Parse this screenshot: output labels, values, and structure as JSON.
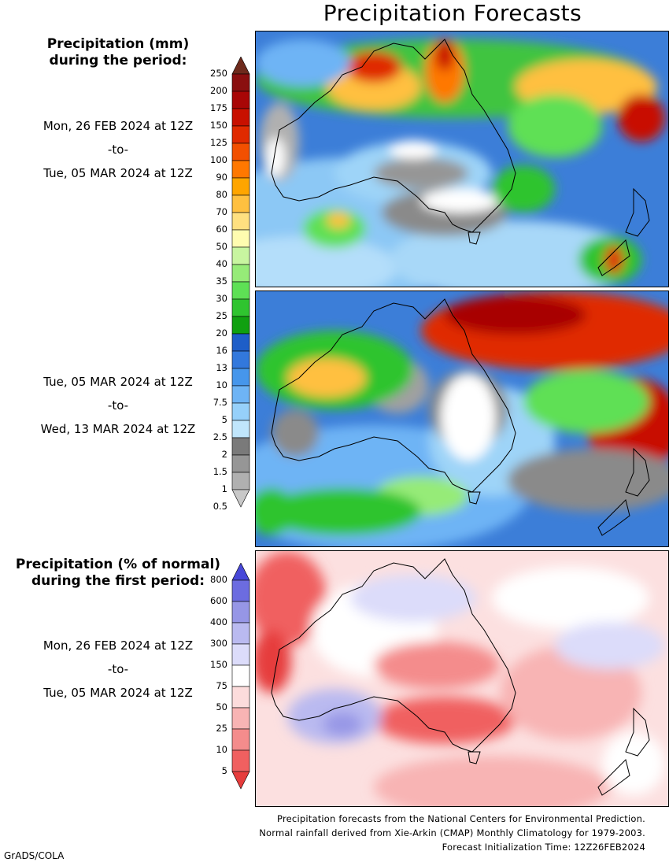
{
  "title": "Precipitation Forecasts",
  "section1": {
    "heading_line1": "Precipitation (mm)",
    "heading_line2": "during the period:",
    "period1": {
      "start": "Mon, 26 FEB 2024 at 12Z",
      "sep": "-to-",
      "end": "Tue, 05 MAR 2024 at 12Z"
    },
    "period2": {
      "start": "Tue, 05 MAR 2024 at 12Z",
      "sep": "-to-",
      "end": "Wed, 13 MAR 2024 at 12Z"
    },
    "colorbar": {
      "labels": [
        "250",
        "200",
        "175",
        "150",
        "125",
        "100",
        "90",
        "80",
        "70",
        "60",
        "50",
        "40",
        "35",
        "30",
        "25",
        "20",
        "16",
        "13",
        "10",
        "7.5",
        "5",
        "2.5",
        "2",
        "1.5",
        "1",
        "0.5"
      ],
      "colors": [
        "#6e2a1c",
        "#8a0f0f",
        "#a80606",
        "#c81000",
        "#e02a00",
        "#f25000",
        "#ff7800",
        "#ffa500",
        "#ffc040",
        "#ffe080",
        "#fffcb0",
        "#c8f5a0",
        "#96eb78",
        "#5ee055",
        "#2fc42f",
        "#10a010",
        "#1e5ec8",
        "#3278dc",
        "#4696eb",
        "#6eb4f5",
        "#96d0fa",
        "#c0e6fc",
        "#7a7a7a",
        "#969696",
        "#b0b0b0",
        "#c8c8c8"
      ]
    }
  },
  "section2": {
    "heading_line1": "Precipitation (% of normal)",
    "heading_line2": "during the first period:",
    "period": {
      "start": "Mon, 26 FEB 2024 at 12Z",
      "sep": "-to-",
      "end": "Tue, 05 MAR 2024 at 12Z"
    },
    "colorbar": {
      "labels": [
        "800",
        "600",
        "400",
        "300",
        "150",
        "75",
        "50",
        "25",
        "10",
        "5"
      ],
      "colors": [
        "#4848d8",
        "#6c6ce0",
        "#9696e6",
        "#babaf0",
        "#dcdcfa",
        "#ffffff",
        "#fcdcdc",
        "#f8b4b4",
        "#f48c8c",
        "#f06060",
        "#e63c3c"
      ]
    }
  },
  "footer": {
    "line1": "Precipitation forecasts from the National Centers for Environmental Prediction.",
    "line2": "Normal rainfall derived from Xie-Arkin (CMAP) Monthly Climatology for 1979-2003.",
    "line3": "Forecast Initialization Time: 12Z26FEB2024"
  },
  "credit": "GrADS/COLA"
}
